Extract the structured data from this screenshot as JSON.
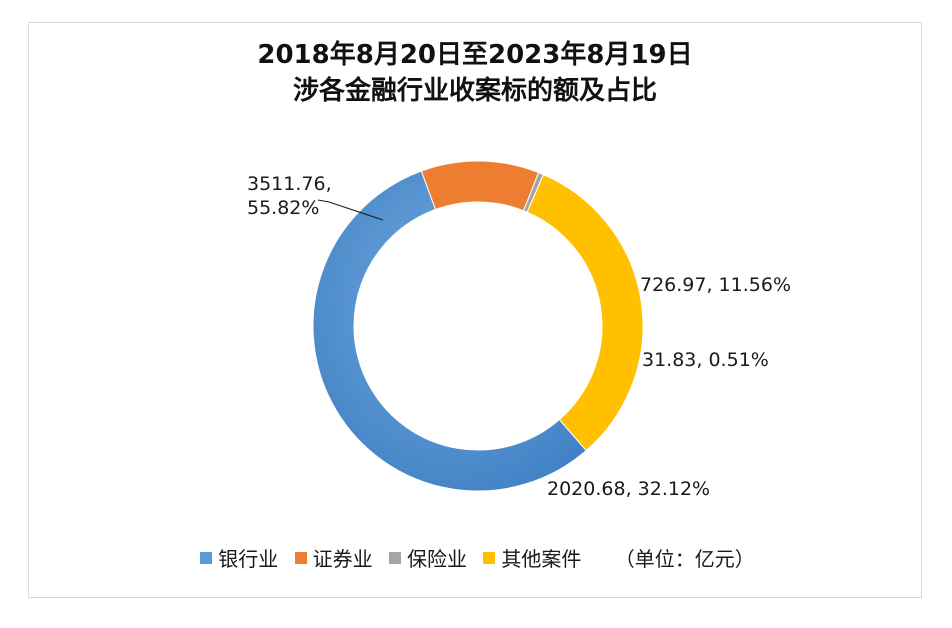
{
  "chart_data": {
    "type": "pie",
    "style": "donut",
    "title_lines": [
      "2018年8月20日至2023年8月19日",
      "涉各金融行业收案标的额及占比"
    ],
    "unit": "（单位：亿元）",
    "legend_position": "bottom",
    "slices": [
      {
        "name": "银行业",
        "value": 3511.76,
        "percent": 55.82,
        "color": "#5b9bd5",
        "label": "3511.76,\n55.82%"
      },
      {
        "name": "证券业",
        "value": 726.97,
        "percent": 11.56,
        "color": "#ed7d31",
        "label": "726.97, 11.56%"
      },
      {
        "name": "保险业",
        "value": 31.83,
        "percent": 0.51,
        "color": "#a5a5a5",
        "label": "31.83, 0.51%"
      },
      {
        "name": "其他案件",
        "value": 2020.68,
        "percent": 32.12,
        "color": "#ffc000",
        "label": "2020.68, 32.12%"
      }
    ]
  }
}
